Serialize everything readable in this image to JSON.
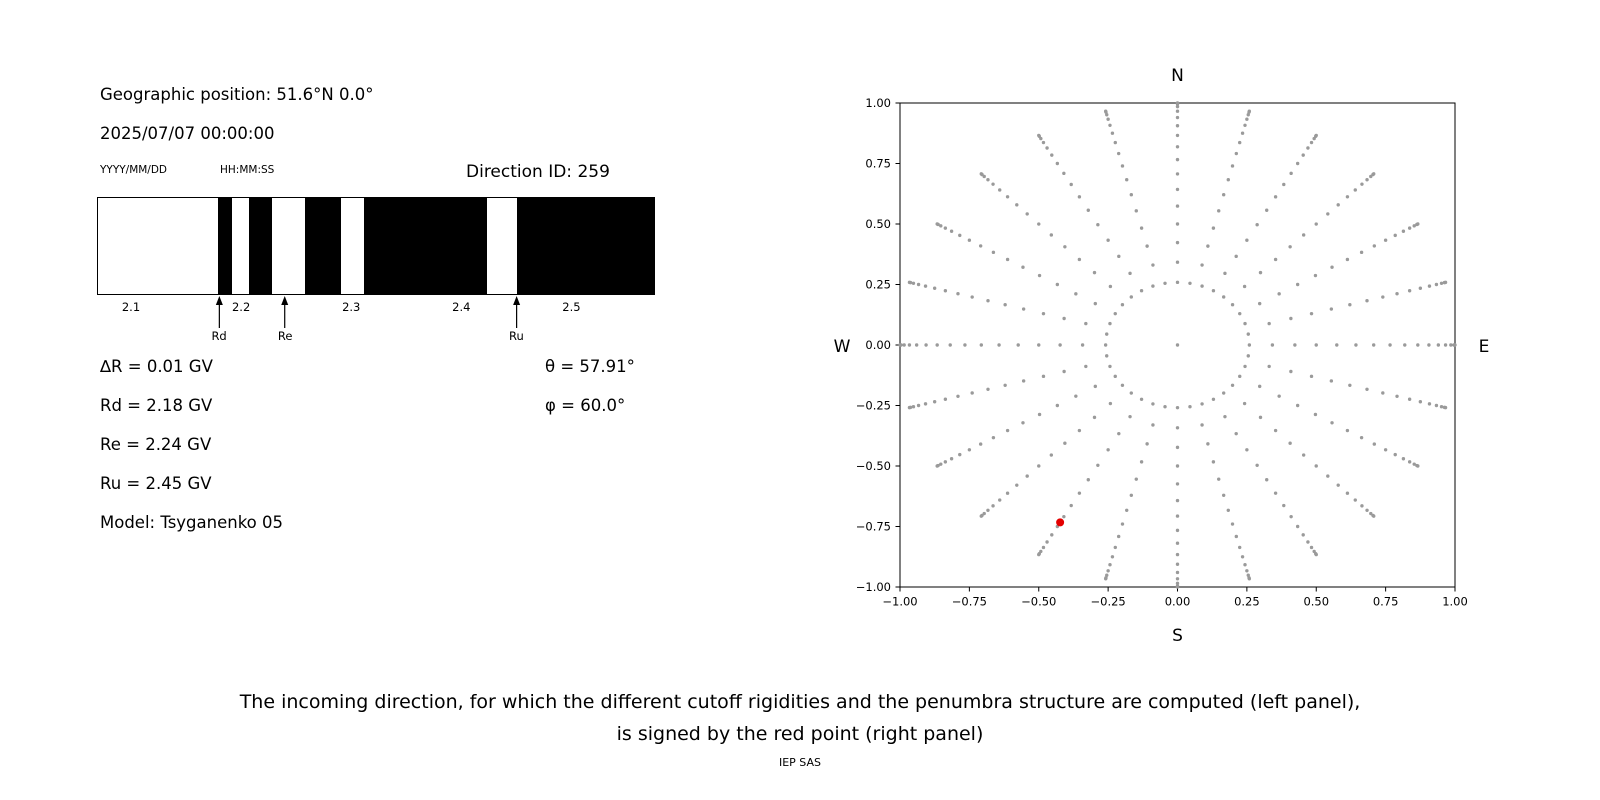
{
  "header": {
    "geo_position": "Geographic position: 51.6°N 0.0°",
    "datetime": "2025/07/07 00:00:00",
    "date_format": "YYYY/MM/DD",
    "time_format": "HH:MM:SS",
    "direction_id": "Direction ID: 259"
  },
  "results": {
    "delta_r": "∆R = 0.01 GV",
    "rd": "Rd = 2.18 GV",
    "re": "Re = 2.24 GV",
    "ru": "Ru = 2.45 GV",
    "model": "Model: Tsyganenko 05",
    "theta": "θ = 57.91°",
    "phi": "φ = 60.0°"
  },
  "caption": {
    "line1": "The incoming direction, for which the different cutoff rigidities and the penumbra structure are computed (left panel),",
    "line2": "is signed by the red point (right panel)",
    "credit": "IEP SAS"
  },
  "chart_data": [
    {
      "type": "bar",
      "name": "penumbra-structure",
      "x_range": [
        2.07,
        2.575
      ],
      "x_tick_values": [
        2.1,
        2.2,
        2.3,
        2.4,
        2.5
      ],
      "x_tick_labels": [
        "2.1",
        "2.2",
        "2.3",
        "2.4",
        "2.5"
      ],
      "forbidden_bands_gv": [
        [
          2.179,
          2.192
        ],
        [
          2.207,
          2.228
        ],
        [
          2.258,
          2.291
        ],
        [
          2.312,
          2.423
        ],
        [
          2.451,
          2.575
        ]
      ],
      "band_color": "#000000",
      "allowed_color": "#ffffff",
      "markers": [
        {
          "label": "Rd",
          "gv": 2.18
        },
        {
          "label": "Re",
          "gv": 2.24
        },
        {
          "label": "Ru",
          "gv": 2.45
        }
      ]
    },
    {
      "type": "scatter",
      "name": "incoming-direction-map",
      "xlim": [
        -1.0,
        1.0
      ],
      "ylim": [
        -1.0,
        1.0
      ],
      "x_tick_values": [
        -1.0,
        -0.75,
        -0.5,
        -0.25,
        0.0,
        0.25,
        0.5,
        0.75,
        1.0
      ],
      "x_tick_labels": [
        "−1.00",
        "−0.75",
        "−0.50",
        "−0.25",
        "0.00",
        "0.25",
        "0.50",
        "0.75",
        "1.00"
      ],
      "y_tick_values": [
        -1.0,
        -0.75,
        -0.5,
        -0.25,
        0.0,
        0.25,
        0.5,
        0.75,
        1.0
      ],
      "y_tick_labels": [
        "−1.00",
        "−0.75",
        "−0.50",
        "−0.25",
        "0.00",
        "0.25",
        "0.50",
        "0.75",
        "1.00"
      ],
      "compass": {
        "top": "N",
        "bottom": "S",
        "left": "W",
        "right": "E"
      },
      "dot_color": "#9a9a9a",
      "grid": {
        "center_point": true,
        "inner_ring": {
          "radius": 0.259,
          "count": 36
        },
        "azimuths_deg": [
          0,
          15,
          30,
          45,
          60,
          75,
          90,
          105,
          120,
          135,
          150,
          165,
          180,
          195,
          210,
          225,
          240,
          255,
          270,
          285,
          300,
          315,
          330,
          345
        ],
        "spoke_radii": [
          0.342,
          0.423,
          0.5,
          0.574,
          0.643,
          0.707,
          0.766,
          0.819,
          0.866,
          0.906,
          0.94,
          0.966,
          0.985,
          0.996,
          1.0
        ]
      },
      "red_point": {
        "x": -0.423,
        "y": -0.733,
        "color": "#e40000",
        "theta_deg": 57.91,
        "phi_deg": 60.0
      }
    }
  ]
}
